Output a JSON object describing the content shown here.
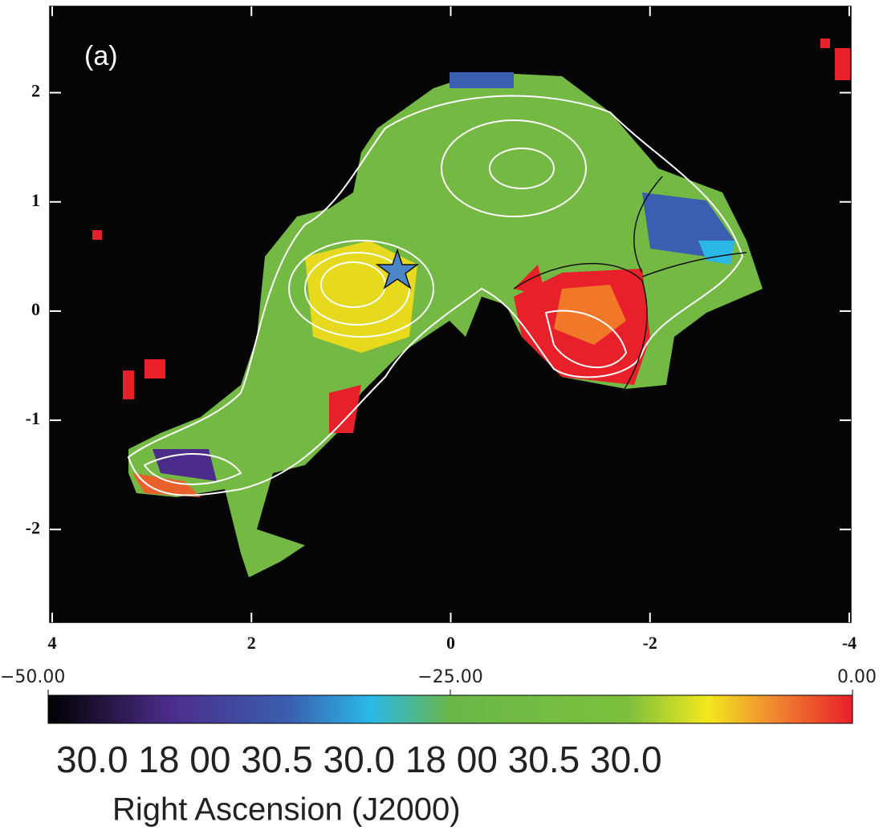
{
  "chart_data": {
    "type": "image",
    "panel_label": "(a)",
    "xlim": [
      4,
      -4
    ],
    "ylim": [
      -2.85,
      2.79
    ],
    "xticks": [
      4,
      2,
      0,
      -2,
      -4
    ],
    "yticks": [
      2,
      1,
      0,
      -1,
      -2
    ],
    "colorbar": {
      "lim": [
        -50,
        0
      ],
      "ticks": [
        {
          "value": -50,
          "label": "−50.00"
        },
        {
          "value": -25,
          "label": "−25.00"
        },
        {
          "value": 0,
          "label": "0.00"
        }
      ]
    },
    "clipped_axis_text": "30.0    18 00  30.5          30.0    18 00  30.5          30.0",
    "xlabel": "Right Ascension  (J2000)"
  }
}
